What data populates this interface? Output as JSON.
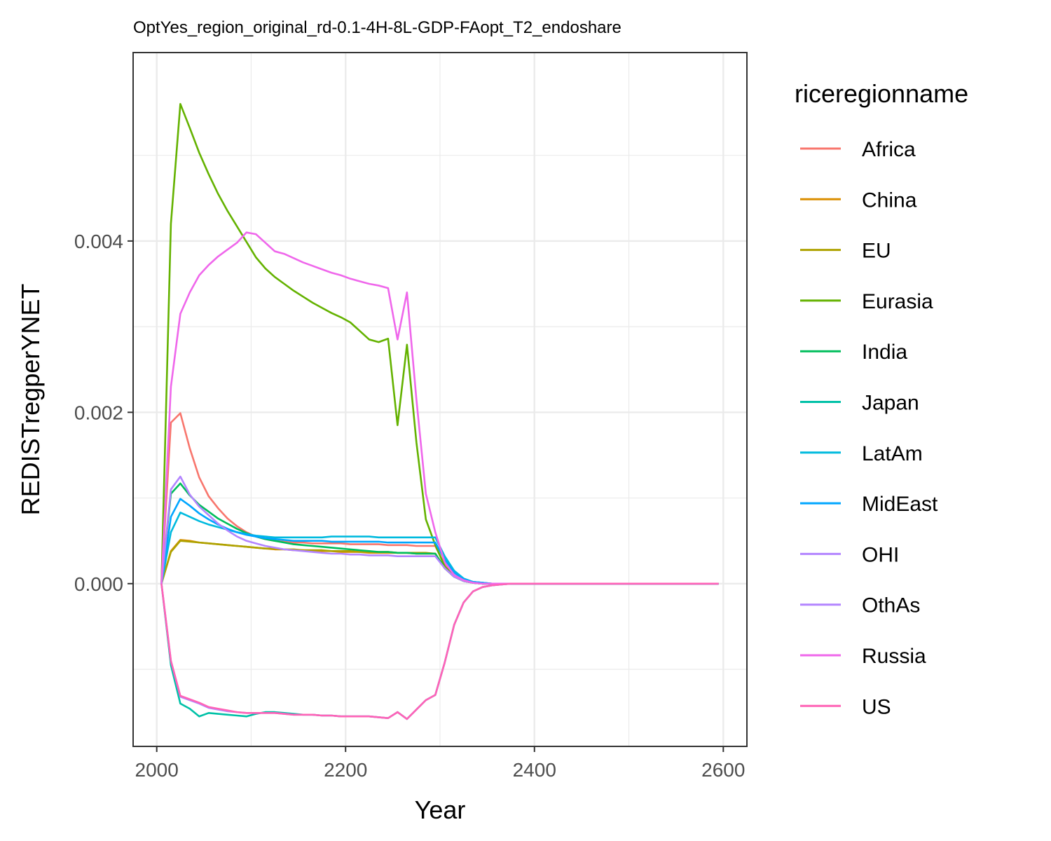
{
  "chart_data": {
    "type": "line",
    "title": "OptYes_region_original_rd-0.1-4H-8L-GDP-FAopt_T2_endoshare",
    "xlabel": "Year",
    "ylabel": "REDISTregperYNET",
    "xlim": [
      1975,
      2625
    ],
    "ylim": [
      -0.0019,
      0.0062
    ],
    "xticks": [
      2000,
      2200,
      2400,
      2600
    ],
    "xtick_labels": [
      "2000",
      "2200",
      "2400",
      "2600"
    ],
    "yticks": [
      0.0,
      0.002,
      0.004
    ],
    "ytick_labels": [
      "0.000",
      "0.002",
      "0.004"
    ],
    "grid": true,
    "legend": {
      "title": "riceregionname",
      "position": "right"
    },
    "x": [
      2005,
      2015,
      2025,
      2035,
      2045,
      2055,
      2065,
      2075,
      2085,
      2095,
      2105,
      2115,
      2125,
      2135,
      2145,
      2155,
      2165,
      2175,
      2185,
      2195,
      2205,
      2215,
      2225,
      2235,
      2245,
      2255,
      2265,
      2275,
      2285,
      2295,
      2305,
      2315,
      2325,
      2335,
      2345,
      2355,
      2365,
      2375,
      2385,
      2395,
      2405,
      2455,
      2505,
      2555,
      2595
    ],
    "series": [
      {
        "name": "Africa",
        "color": "#F8766D",
        "values": [
          0,
          0.00188,
          0.00199,
          0.00158,
          0.00124,
          0.00102,
          0.00088,
          0.00076,
          0.00067,
          0.0006,
          0.00055,
          0.00052,
          0.0005,
          0.00049,
          0.00048,
          0.00048,
          0.00047,
          0.00047,
          0.00047,
          0.00047,
          0.00046,
          0.00046,
          0.00046,
          0.00046,
          0.00045,
          0.00045,
          0.00045,
          0.00044,
          0.00044,
          0.00044,
          0.00022,
          0.0001,
          4e-05,
          2e-05,
          1e-05,
          0,
          0,
          0,
          0,
          0,
          0,
          0,
          0,
          0,
          0
        ]
      },
      {
        "name": "China",
        "color": "#DB8E00",
        "values": [
          0,
          0.00038,
          0.00051,
          0.0005,
          0.00048,
          0.00047,
          0.00046,
          0.00045,
          0.00044,
          0.00043,
          0.00042,
          0.00041,
          0.0004,
          0.0004,
          0.00039,
          0.00039,
          0.00038,
          0.00038,
          0.00038,
          0.00037,
          0.00037,
          0.00037,
          0.00036,
          0.00036,
          0.00036,
          0.00036,
          0.00036,
          0.00035,
          0.00035,
          0.00035,
          0.00018,
          8e-05,
          3e-05,
          1e-05,
          0,
          0,
          0,
          0,
          0,
          0,
          0,
          0,
          0,
          0,
          0
        ]
      },
      {
        "name": "EU",
        "color": "#AEA200",
        "values": [
          0,
          0.00037,
          0.0005,
          0.00049,
          0.00048,
          0.00047,
          0.00046,
          0.00045,
          0.00044,
          0.00043,
          0.00042,
          0.00041,
          0.00041,
          0.0004,
          0.0004,
          0.00039,
          0.00039,
          0.00039,
          0.00038,
          0.00038,
          0.00038,
          0.00037,
          0.00037,
          0.00037,
          0.00037,
          0.00036,
          0.00036,
          0.00036,
          0.00036,
          0.00035,
          0.00018,
          8e-05,
          3e-05,
          1e-05,
          0,
          0,
          0,
          0,
          0,
          0,
          0,
          0,
          0,
          0,
          0
        ]
      },
      {
        "name": "Eurasia",
        "color": "#64B200",
        "values": [
          0,
          0.0042,
          0.0056,
          0.00532,
          0.00503,
          0.00478,
          0.00455,
          0.00435,
          0.00417,
          0.00399,
          0.00381,
          0.00368,
          0.00358,
          0.0035,
          0.00342,
          0.00335,
          0.00328,
          0.00322,
          0.00316,
          0.00311,
          0.00305,
          0.00295,
          0.00285,
          0.00282,
          0.00286,
          0.00185,
          0.00279,
          0.00165,
          0.00075,
          0.00045,
          0.0002,
          9e-05,
          3e-05,
          1e-05,
          0,
          0,
          0,
          0,
          0,
          0,
          0,
          0,
          0,
          0,
          0
        ]
      },
      {
        "name": "India",
        "color": "#00BD5C",
        "values": [
          0,
          0.00105,
          0.00117,
          0.00103,
          0.00092,
          0.00084,
          0.00076,
          0.0007,
          0.00064,
          0.00059,
          0.00055,
          0.00052,
          0.0005,
          0.00048,
          0.00046,
          0.00045,
          0.00044,
          0.00043,
          0.00042,
          0.00041,
          0.0004,
          0.00039,
          0.00038,
          0.00037,
          0.00037,
          0.00036,
          0.00036,
          0.00035,
          0.00035,
          0.00035,
          0.00018,
          8e-05,
          3e-05,
          1e-05,
          0,
          0,
          0,
          0,
          0,
          0,
          0,
          0,
          0,
          0,
          0
        ]
      },
      {
        "name": "Japan",
        "color": "#00C1A7",
        "values": [
          0,
          -0.00095,
          -0.0014,
          -0.00146,
          -0.00155,
          -0.00151,
          -0.00152,
          -0.00153,
          -0.00154,
          -0.00155,
          -0.00152,
          -0.0015,
          -0.0015,
          -0.00151,
          -0.00152,
          -0.00153,
          -0.00153,
          -0.00154,
          -0.00154,
          -0.00155,
          -0.00155,
          -0.00155,
          -0.00155,
          -0.00156,
          -0.00157,
          -0.0015,
          -0.00158,
          -0.00147,
          -0.00136,
          -0.0013,
          -0.00092,
          -0.00048,
          -0.00022,
          -9e-05,
          -4e-05,
          -2e-05,
          -1e-05,
          0,
          0,
          0,
          0,
          0,
          0,
          0,
          0
        ]
      },
      {
        "name": "LatAm",
        "color": "#00BADE",
        "values": [
          0,
          0.0006,
          0.00083,
          0.00078,
          0.00073,
          0.00069,
          0.00066,
          0.00063,
          0.0006,
          0.00058,
          0.00056,
          0.00055,
          0.00054,
          0.00054,
          0.00054,
          0.00054,
          0.00054,
          0.00054,
          0.00055,
          0.00055,
          0.00055,
          0.00055,
          0.00055,
          0.00054,
          0.00054,
          0.00054,
          0.00054,
          0.00054,
          0.00054,
          0.00054,
          0.00032,
          0.00015,
          6e-05,
          2e-05,
          1e-05,
          0,
          0,
          0,
          0,
          0,
          0,
          0,
          0,
          0,
          0
        ]
      },
      {
        "name": "MidEast",
        "color": "#00A6FF",
        "values": [
          0,
          0.00078,
          0.00099,
          0.00091,
          0.00082,
          0.00075,
          0.00069,
          0.00064,
          0.0006,
          0.00057,
          0.00055,
          0.00053,
          0.00052,
          0.00051,
          0.0005,
          0.0005,
          0.0005,
          0.0005,
          0.00049,
          0.00049,
          0.00049,
          0.00049,
          0.00049,
          0.00049,
          0.00048,
          0.00048,
          0.00048,
          0.00048,
          0.00048,
          0.00048,
          0.00028,
          0.00013,
          5e-05,
          2e-05,
          1e-05,
          0,
          0,
          0,
          0,
          0,
          0,
          0,
          0,
          0,
          0
        ]
      },
      {
        "name": "OHI",
        "color": "#B385FF",
        "values": [
          0,
          -0.0009,
          -0.00132,
          -0.00136,
          -0.0014,
          -0.00145,
          -0.00147,
          -0.00149,
          -0.0015,
          -0.00151,
          -0.00151,
          -0.00151,
          -0.00151,
          -0.00152,
          -0.00153,
          -0.00153,
          -0.00153,
          -0.00154,
          -0.00154,
          -0.00155,
          -0.00155,
          -0.00155,
          -0.00155,
          -0.00156,
          -0.00157,
          -0.0015,
          -0.00158,
          -0.00147,
          -0.00136,
          -0.0013,
          -0.00092,
          -0.00048,
          -0.00022,
          -9e-05,
          -4e-05,
          -2e-05,
          -1e-05,
          0,
          0,
          0,
          0,
          0,
          0,
          0,
          0
        ]
      },
      {
        "name": "OthAs",
        "color": "#B385FF",
        "values": [
          0,
          0.0011,
          0.00125,
          0.00104,
          0.0009,
          0.0008,
          0.0007,
          0.00062,
          0.00055,
          0.0005,
          0.00047,
          0.00044,
          0.00042,
          0.0004,
          0.00039,
          0.00038,
          0.00037,
          0.00036,
          0.00035,
          0.00035,
          0.00034,
          0.00034,
          0.00033,
          0.00033,
          0.00033,
          0.00032,
          0.00032,
          0.00032,
          0.00032,
          0.00032,
          0.00018,
          8e-05,
          3e-05,
          1e-05,
          0,
          0,
          0,
          0,
          0,
          0,
          0,
          0,
          0,
          0,
          0
        ]
      },
      {
        "name": "Russia",
        "color": "#EF67EB",
        "values": [
          0,
          0.0023,
          0.00315,
          0.0034,
          0.0036,
          0.00372,
          0.00382,
          0.0039,
          0.00398,
          0.0041,
          0.00408,
          0.00398,
          0.00388,
          0.00385,
          0.0038,
          0.00375,
          0.00371,
          0.00367,
          0.00363,
          0.0036,
          0.00356,
          0.00353,
          0.0035,
          0.00348,
          0.00345,
          0.00285,
          0.0034,
          0.00215,
          0.00105,
          0.0006,
          0.00025,
          0.0001,
          4e-05,
          1e-05,
          0,
          0,
          0,
          0,
          0,
          0,
          0,
          0,
          0,
          0,
          0
        ]
      },
      {
        "name": "US",
        "color": "#FF63B6",
        "values": [
          0,
          -0.0009,
          -0.00131,
          -0.00135,
          -0.00139,
          -0.00144,
          -0.00146,
          -0.00148,
          -0.0015,
          -0.00151,
          -0.00151,
          -0.00151,
          -0.00151,
          -0.00152,
          -0.00153,
          -0.00153,
          -0.00153,
          -0.00154,
          -0.00154,
          -0.00155,
          -0.00155,
          -0.00155,
          -0.00155,
          -0.00156,
          -0.00157,
          -0.0015,
          -0.00158,
          -0.00147,
          -0.00136,
          -0.0013,
          -0.00092,
          -0.00048,
          -0.00022,
          -9e-05,
          -4e-05,
          -2e-05,
          -1e-05,
          0,
          0,
          0,
          0,
          0,
          0,
          0,
          0
        ]
      }
    ]
  }
}
